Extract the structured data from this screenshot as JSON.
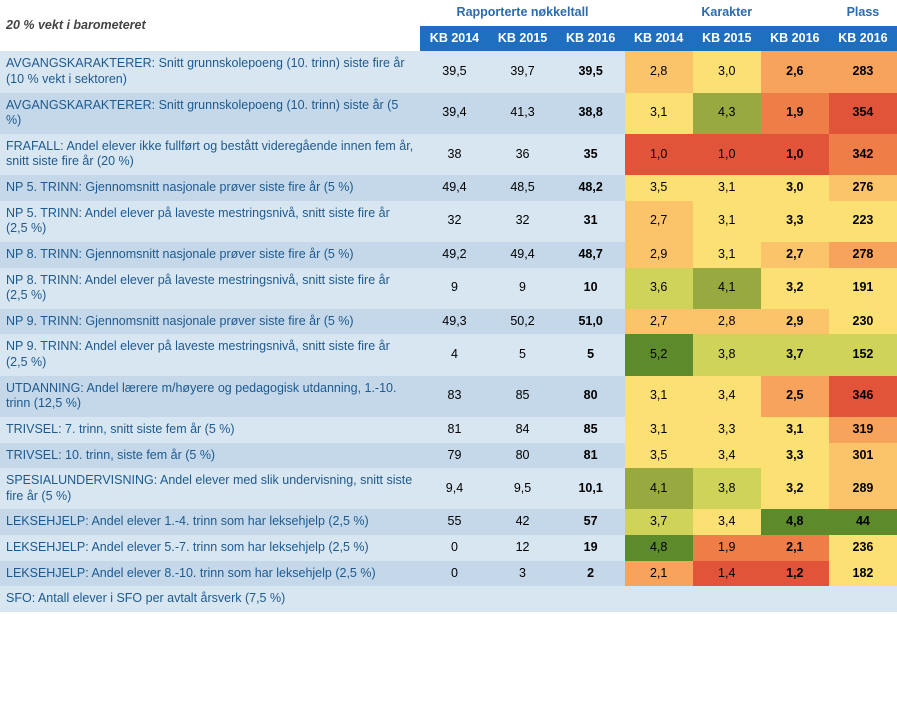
{
  "corner": "20 % vekt i barometeret",
  "groups": {
    "g1": "Rapporterte nøkkeltall",
    "g2": "Karakter",
    "g3": "Plass"
  },
  "cols": {
    "c1": "KB 2014",
    "c2": "KB 2015",
    "c3": "KB 2016",
    "c4": "KB 2014",
    "c5": "KB 2015",
    "c6": "KB 2016",
    "c7": "KB 2016"
  },
  "zebra_colors": {
    "a": "#d8e6f2",
    "b": "#c4d8ea"
  },
  "heat_palette": {
    "dark_green": "#5d8a2a",
    "olive": "#98a93f",
    "yellow_green": "#cfd35a",
    "yellow": "#fbe074",
    "light_orange": "#fcc46a",
    "orange": "#f7a35c",
    "dark_orange": "#ee7d47",
    "red": "#e25439"
  },
  "rows": [
    {
      "label": "AVGANGSKARAKTERER: Snitt grunnskolepoeng (10. trinn)  siste fire år (10 % vekt i sektoren)",
      "r": [
        "39,5",
        "39,7",
        "39,5"
      ],
      "k": [
        {
          "v": "2,8",
          "c": "#fcc46a"
        },
        {
          "v": "3,0",
          "c": "#fbe074"
        },
        {
          "v": "2,6",
          "c": "#f7a35c"
        }
      ],
      "p": {
        "v": "283",
        "c": "#f7a35c"
      }
    },
    {
      "label": "AVGANGSKARAKTERER: Snitt grunnskolepoeng (10. trinn)  siste år (5 %)",
      "r": [
        "39,4",
        "41,3",
        "38,8"
      ],
      "k": [
        {
          "v": "3,1",
          "c": "#fbe074"
        },
        {
          "v": "4,3",
          "c": "#98a93f"
        },
        {
          "v": "1,9",
          "c": "#ee7d47"
        }
      ],
      "p": {
        "v": "354",
        "c": "#e25439"
      }
    },
    {
      "label": "FRAFALL: Andel elever ikke fullført og bestått videregående innen fem år, snitt siste fire år (20 %)",
      "r": [
        "38",
        "36",
        "35"
      ],
      "k": [
        {
          "v": "1,0",
          "c": "#e25439"
        },
        {
          "v": "1,0",
          "c": "#e25439"
        },
        {
          "v": "1,0",
          "c": "#e25439"
        }
      ],
      "p": {
        "v": "342",
        "c": "#ee7d47"
      }
    },
    {
      "label": "NP 5. TRINN: Gjennomsnitt nasjonale prøver siste fire år (5 %)",
      "r": [
        "49,4",
        "48,5",
        "48,2"
      ],
      "k": [
        {
          "v": "3,5",
          "c": "#fbe074"
        },
        {
          "v": "3,1",
          "c": "#fbe074"
        },
        {
          "v": "3,0",
          "c": "#fbe074"
        }
      ],
      "p": {
        "v": "276",
        "c": "#fcc46a"
      }
    },
    {
      "label": "NP 5. TRINN: Andel elever på laveste mestringsnivå, snitt siste fire år (2,5 %)",
      "r": [
        "32",
        "32",
        "31"
      ],
      "k": [
        {
          "v": "2,7",
          "c": "#fcc46a"
        },
        {
          "v": "3,1",
          "c": "#fbe074"
        },
        {
          "v": "3,3",
          "c": "#fbe074"
        }
      ],
      "p": {
        "v": "223",
        "c": "#fbe074"
      }
    },
    {
      "label": "NP 8. TRINN: Gjennomsnitt nasjonale prøver siste fire år (5 %)",
      "r": [
        "49,2",
        "49,4",
        "48,7"
      ],
      "k": [
        {
          "v": "2,9",
          "c": "#fcc46a"
        },
        {
          "v": "3,1",
          "c": "#fbe074"
        },
        {
          "v": "2,7",
          "c": "#fcc46a"
        }
      ],
      "p": {
        "v": "278",
        "c": "#f7a35c"
      }
    },
    {
      "label": "NP 8. TRINN: Andel elever på laveste mestringsnivå, snitt siste fire år (2,5 %)",
      "r": [
        "9",
        "9",
        "10"
      ],
      "k": [
        {
          "v": "3,6",
          "c": "#cfd35a"
        },
        {
          "v": "4,1",
          "c": "#98a93f"
        },
        {
          "v": "3,2",
          "c": "#fbe074"
        }
      ],
      "p": {
        "v": "191",
        "c": "#fbe074"
      }
    },
    {
      "label": "NP 9. TRINN: Gjennomsnitt nasjonale prøver siste fire år (5 %)",
      "r": [
        "49,3",
        "50,2",
        "51,0"
      ],
      "k": [
        {
          "v": "2,7",
          "c": "#fcc46a"
        },
        {
          "v": "2,8",
          "c": "#fcc46a"
        },
        {
          "v": "2,9",
          "c": "#fcc46a"
        }
      ],
      "p": {
        "v": "230",
        "c": "#fbe074"
      }
    },
    {
      "label": "NP 9. TRINN: Andel elever på laveste mestringsnivå, snitt siste fire år (2,5 %)",
      "r": [
        "4",
        "5",
        "5"
      ],
      "k": [
        {
          "v": "5,2",
          "c": "#5d8a2a"
        },
        {
          "v": "3,8",
          "c": "#cfd35a"
        },
        {
          "v": "3,7",
          "c": "#cfd35a"
        }
      ],
      "p": {
        "v": "152",
        "c": "#cfd35a"
      }
    },
    {
      "label": "UTDANNING: Andel lærere m/høyere og pedagogisk utdanning, 1.-10. trinn (12,5 %)",
      "r": [
        "83",
        "85",
        "80"
      ],
      "k": [
        {
          "v": "3,1",
          "c": "#fbe074"
        },
        {
          "v": "3,4",
          "c": "#fbe074"
        },
        {
          "v": "2,5",
          "c": "#f7a35c"
        }
      ],
      "p": {
        "v": "346",
        "c": "#e25439"
      }
    },
    {
      "label": "TRIVSEL: 7. trinn, snitt siste fem år (5 %)",
      "r": [
        "81",
        "84",
        "85"
      ],
      "k": [
        {
          "v": "3,1",
          "c": "#fbe074"
        },
        {
          "v": "3,3",
          "c": "#fbe074"
        },
        {
          "v": "3,1",
          "c": "#fbe074"
        }
      ],
      "p": {
        "v": "319",
        "c": "#f7a35c"
      }
    },
    {
      "label": "TRIVSEL: 10. trinn, siste fem år (5 %)",
      "r": [
        "79",
        "80",
        "81"
      ],
      "k": [
        {
          "v": "3,5",
          "c": "#fbe074"
        },
        {
          "v": "3,4",
          "c": "#fbe074"
        },
        {
          "v": "3,3",
          "c": "#fbe074"
        }
      ],
      "p": {
        "v": "301",
        "c": "#fcc46a"
      }
    },
    {
      "label": "SPESIALUNDERVISNING: Andel elever med slik undervisning, snitt siste fire år (5 %)",
      "r": [
        "9,4",
        "9,5",
        "10,1"
      ],
      "k": [
        {
          "v": "4,1",
          "c": "#98a93f"
        },
        {
          "v": "3,8",
          "c": "#cfd35a"
        },
        {
          "v": "3,2",
          "c": "#fbe074"
        }
      ],
      "p": {
        "v": "289",
        "c": "#fcc46a"
      }
    },
    {
      "label": "LEKSEHJELP: Andel elever 1.-4. trinn som har leksehjelp (2,5 %)",
      "r": [
        "55",
        "42",
        "57"
      ],
      "k": [
        {
          "v": "3,7",
          "c": "#cfd35a"
        },
        {
          "v": "3,4",
          "c": "#fbe074"
        },
        {
          "v": "4,8",
          "c": "#5d8a2a"
        }
      ],
      "p": {
        "v": "44",
        "c": "#5d8a2a"
      }
    },
    {
      "label": "LEKSEHJELP: Andel elever 5.-7. trinn som har leksehjelp (2,5 %)",
      "r": [
        "0",
        "12",
        "19"
      ],
      "k": [
        {
          "v": "4,8",
          "c": "#5d8a2a"
        },
        {
          "v": "1,9",
          "c": "#ee7d47"
        },
        {
          "v": "2,1",
          "c": "#ee7d47"
        }
      ],
      "p": {
        "v": "236",
        "c": "#fbe074"
      }
    },
    {
      "label": "LEKSEHJELP: Andel elever 8.-10. trinn som har leksehjelp (2,5 %)",
      "r": [
        "0",
        "3",
        "2"
      ],
      "k": [
        {
          "v": "2,1",
          "c": "#f7a35c"
        },
        {
          "v": "1,4",
          "c": "#e25439"
        },
        {
          "v": "1,2",
          "c": "#e25439"
        }
      ],
      "p": {
        "v": "182",
        "c": "#fbe074"
      }
    },
    {
      "label": "SFO: Antall elever i SFO per avtalt årsverk (7,5 %)",
      "r": [
        "",
        "",
        ""
      ],
      "k": [
        {
          "v": "",
          "c": ""
        },
        {
          "v": "",
          "c": ""
        },
        {
          "v": "",
          "c": ""
        }
      ],
      "p": {
        "v": "",
        "c": ""
      }
    }
  ]
}
